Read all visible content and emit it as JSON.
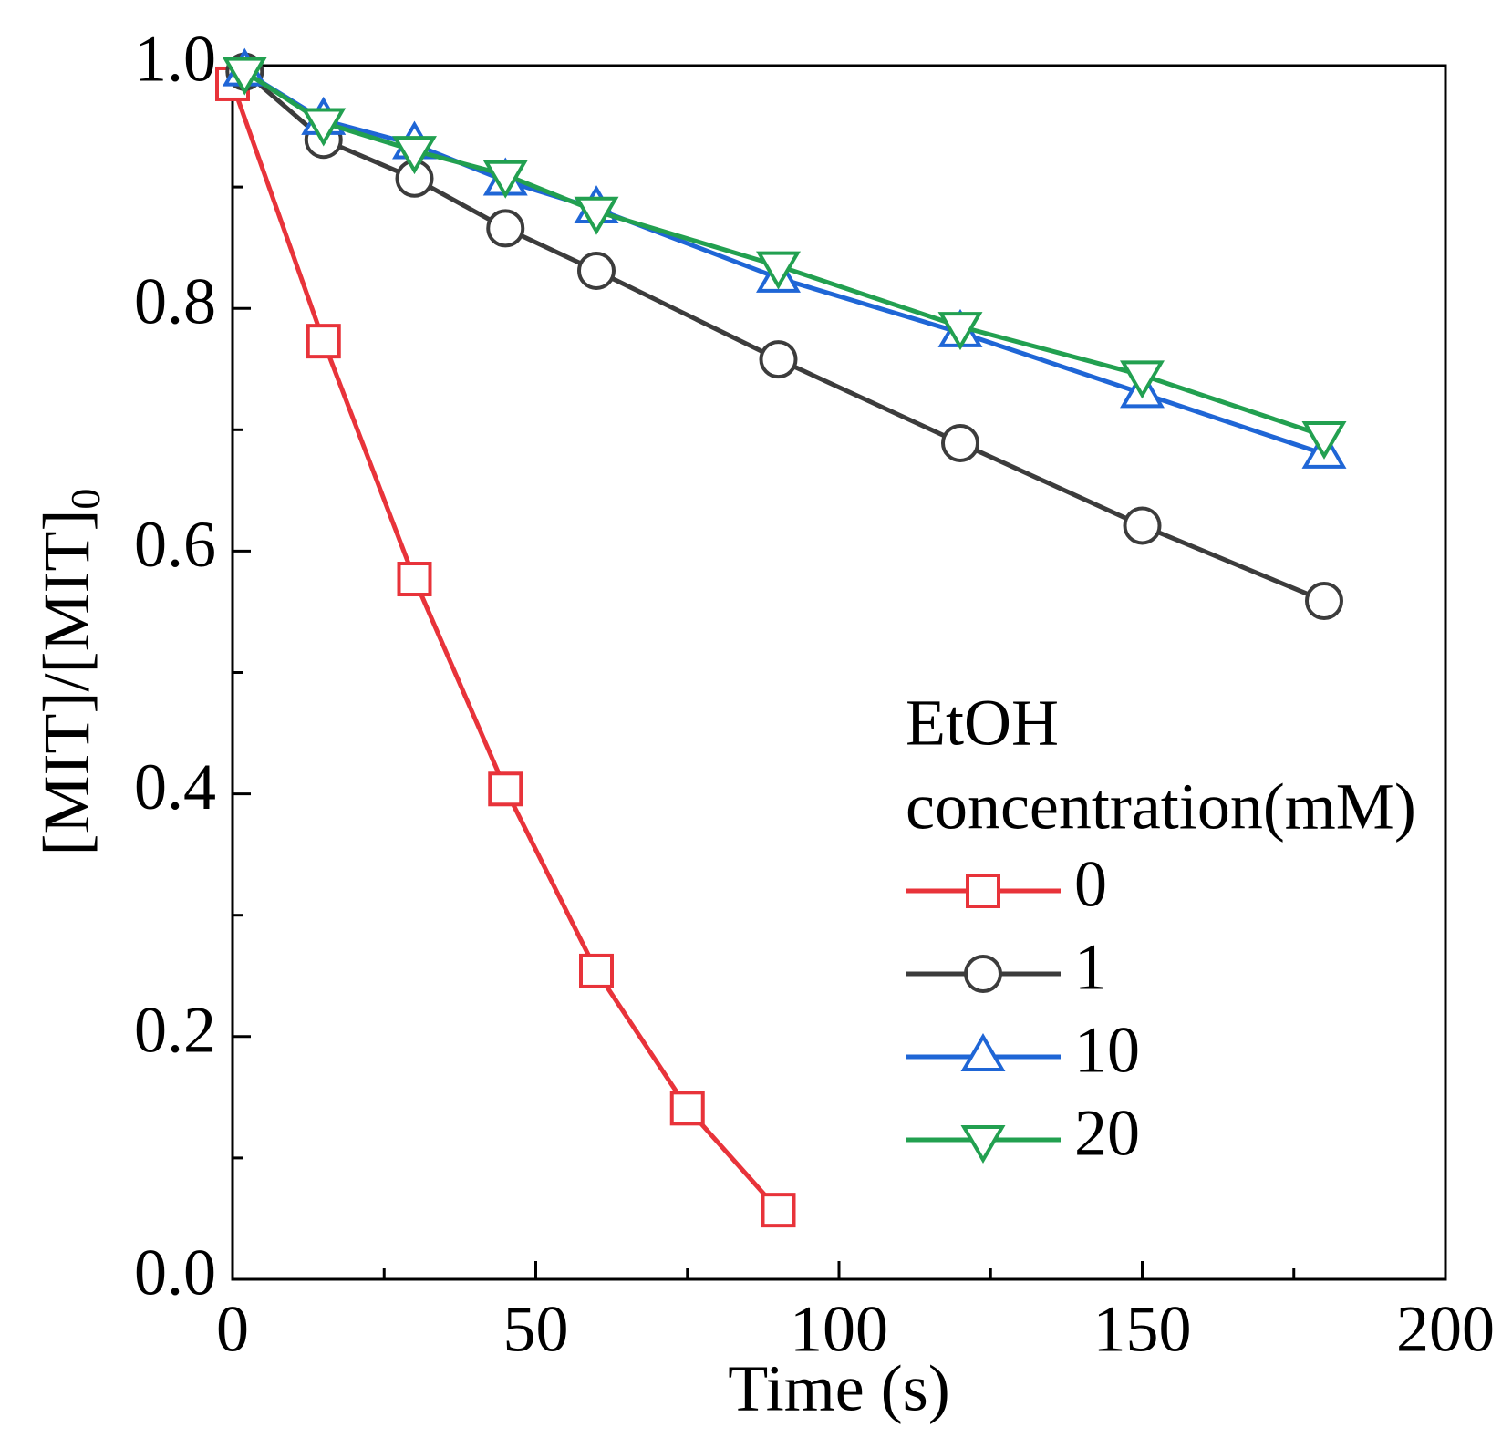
{
  "chart_data": {
    "type": "line",
    "x_label": "Time (s)",
    "y_label": {
      "text": "[MIT]/[MIT]",
      "subscript": "0"
    },
    "legend_title": [
      "EtOH",
      "concentration(mM)"
    ],
    "legend_position": "lower right",
    "xlim": [
      0,
      200
    ],
    "xticks": [
      0,
      50,
      100,
      150,
      200
    ],
    "xminorticks": [
      25,
      75,
      125,
      175
    ],
    "ylim": [
      0,
      1
    ],
    "yticks": [
      {
        "value": 0,
        "label": "0.0"
      },
      0.2,
      0.4,
      0.6,
      0.8,
      {
        "value": 1,
        "label": "1.0"
      }
    ],
    "yminorticks": [
      0.1,
      0.3,
      0.5,
      0.7,
      0.9
    ],
    "series": [
      {
        "name": "0",
        "color": "#e8333a",
        "marker": "square",
        "x": [
          0,
          15,
          30,
          45,
          60,
          75,
          90
        ],
        "values": [
          0.985,
          0.773,
          0.577,
          0.404,
          0.254,
          0.141,
          0.057
        ]
      },
      {
        "name": "1",
        "color": "#3c3c3c",
        "marker": "circle",
        "x": [
          2,
          15,
          30,
          45,
          60,
          90,
          120,
          150,
          180
        ],
        "values": [
          0.995,
          0.939,
          0.907,
          0.866,
          0.831,
          0.758,
          0.689,
          0.621,
          0.559
        ]
      },
      {
        "name": "10",
        "color": "#1f66d6",
        "marker": "triangle-up",
        "x": [
          2,
          15,
          30,
          45,
          60,
          90,
          120,
          150,
          180
        ],
        "values": [
          0.995,
          0.955,
          0.935,
          0.905,
          0.882,
          0.825,
          0.78,
          0.73,
          0.68
        ]
      },
      {
        "name": "20",
        "color": "#22a050",
        "marker": "triangle-down",
        "x": [
          2,
          15,
          30,
          45,
          60,
          90,
          120,
          150,
          180
        ],
        "values": [
          0.995,
          0.953,
          0.93,
          0.91,
          0.88,
          0.835,
          0.785,
          0.745,
          0.695
        ]
      }
    ]
  }
}
